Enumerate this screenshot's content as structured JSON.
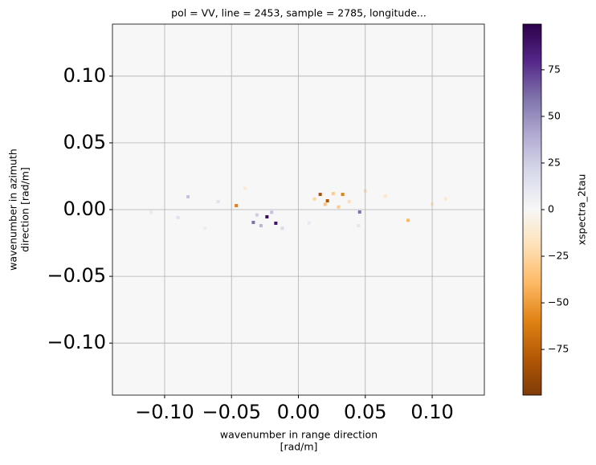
{
  "chart_data": {
    "type": "heatmap",
    "title": "pol = VV, line = 2453, sample = 2785, longitude...",
    "xlabel": [
      "wavenumber in range direction",
      "[rad/m]"
    ],
    "ylabel": [
      "wavenumber in azimuth",
      "direction [rad/m]"
    ],
    "colorbar_label": "xspectra_2tau",
    "xlim": [
      -0.139,
      0.139
    ],
    "ylim": [
      -0.139,
      0.139
    ],
    "xticks": [
      {
        "value": -0.1,
        "label": "−0.10"
      },
      {
        "value": -0.05,
        "label": "−0.05"
      },
      {
        "value": 0,
        "label": "0.00"
      },
      0.05,
      {
        "value": 0.1,
        "label": "0.10"
      }
    ],
    "yticks": [
      {
        "value": -0.1,
        "label": "−0.10"
      },
      {
        "value": -0.05,
        "label": "−0.05"
      },
      {
        "value": 0,
        "label": "0.00"
      },
      0.05,
      {
        "value": 0.1,
        "label": "0.10"
      }
    ],
    "clim": [
      -99.5,
      99.5
    ],
    "cticks": [
      {
        "value": -75,
        "label": "−75"
      },
      {
        "value": -50,
        "label": "−50"
      },
      {
        "value": -25,
        "label": "−25"
      },
      0,
      25,
      50,
      75
    ],
    "colormap": [
      "#7f3b08",
      "#b35806",
      "#e08214",
      "#fdb863",
      "#fee0b6",
      "#f7f7f7",
      "#d8daeb",
      "#b2abd2",
      "#8073ac",
      "#542788",
      "#2d004b"
    ],
    "grid": true,
    "x": [
      -0.0235,
      -0.0169,
      -0.0337,
      -0.0464,
      0.0163,
      0.0217,
      0.0331,
      0.0458,
      -0.0825,
      0.082,
      -0.028,
      -0.02,
      -0.031,
      -0.012,
      0.02,
      0.026,
      0.03,
      0.012,
      0.038,
      0.05,
      -0.06,
      -0.09,
      0.065,
      0.1,
      -0.11,
      0.11,
      -0.04,
      0.008,
      0.045,
      -0.07
    ],
    "y": [
      -0.0054,
      -0.0102,
      -0.0096,
      0.003,
      0.0114,
      0.0066,
      0.0114,
      -0.0018,
      0.0096,
      -0.008,
      -0.012,
      -0.002,
      -0.004,
      -0.014,
      0.004,
      0.012,
      0.002,
      0.008,
      0.006,
      0.014,
      0.006,
      -0.006,
      0.01,
      0.004,
      -0.002,
      0.008,
      0.016,
      -0.01,
      -0.012,
      -0.014
    ],
    "values": [
      95,
      90,
      60,
      -60,
      -85,
      -80,
      -60,
      60,
      30,
      -40,
      35,
      30,
      25,
      20,
      -35,
      -30,
      -30,
      -25,
      -20,
      -20,
      15,
      15,
      -15,
      -15,
      10,
      -12,
      -10,
      10,
      12,
      8
    ]
  }
}
